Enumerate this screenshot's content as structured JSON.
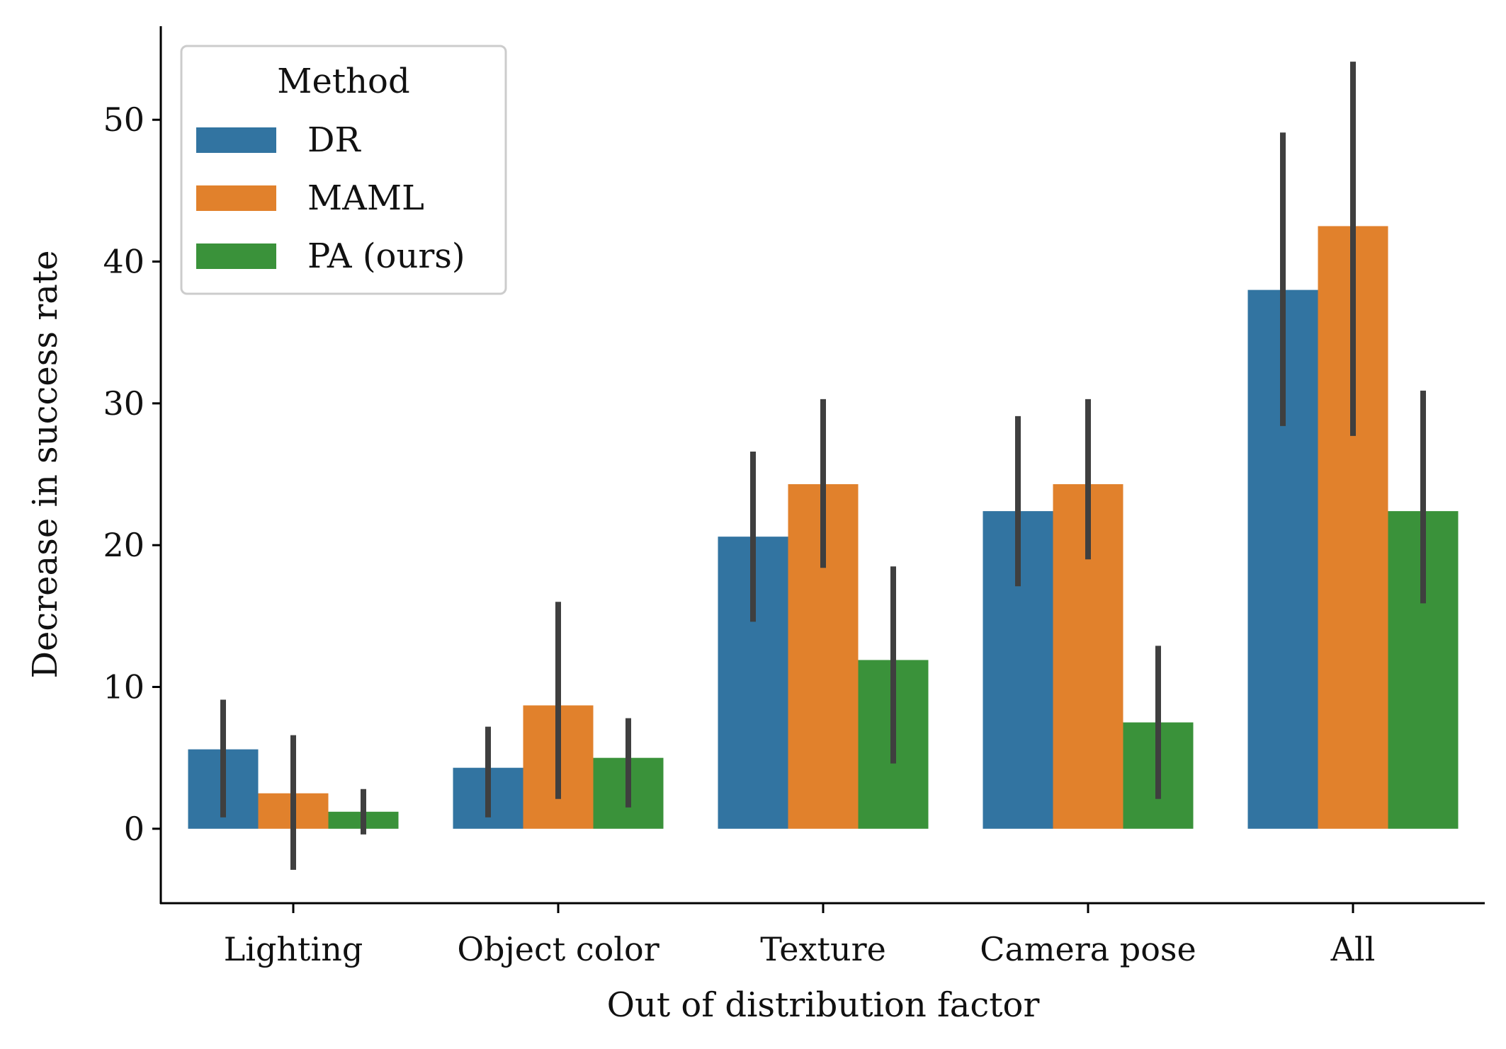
{
  "chart_data": {
    "type": "bar",
    "title": "",
    "xlabel": "Out of distribution factor",
    "ylabel": "Decrease in success rate",
    "categories": [
      "Lighting",
      "Object color",
      "Texture",
      "Camera pose",
      "All"
    ],
    "ylim": [
      -5.3,
      56.6
    ],
    "yticks": [
      0,
      10,
      20,
      30,
      40,
      50
    ],
    "grid": false,
    "legend": {
      "title": "Method",
      "position": "top-left"
    },
    "series": [
      {
        "name": "DR",
        "color": "#3274a1",
        "values": [
          5.6,
          4.3,
          20.6,
          22.4,
          38.0
        ],
        "ci_low": [
          0.8,
          0.8,
          14.6,
          17.1,
          28.4
        ],
        "ci_high": [
          9.1,
          7.2,
          26.6,
          29.1,
          49.1
        ]
      },
      {
        "name": "MAML",
        "color": "#e1812c",
        "values": [
          2.5,
          8.7,
          24.3,
          24.3,
          42.5
        ],
        "ci_low": [
          -2.9,
          2.1,
          18.4,
          19.0,
          27.7
        ],
        "ci_high": [
          6.6,
          16.0,
          30.3,
          30.3,
          54.1
        ]
      },
      {
        "name": "PA (ours)",
        "color": "#3a923a",
        "values": [
          1.2,
          5.0,
          11.9,
          7.5,
          22.4
        ],
        "ci_low": [
          -0.4,
          1.5,
          4.6,
          2.1,
          15.9
        ],
        "ci_high": [
          2.8,
          7.8,
          18.5,
          12.9,
          30.9
        ]
      }
    ],
    "errorbar_color": "#3f3f3f"
  }
}
